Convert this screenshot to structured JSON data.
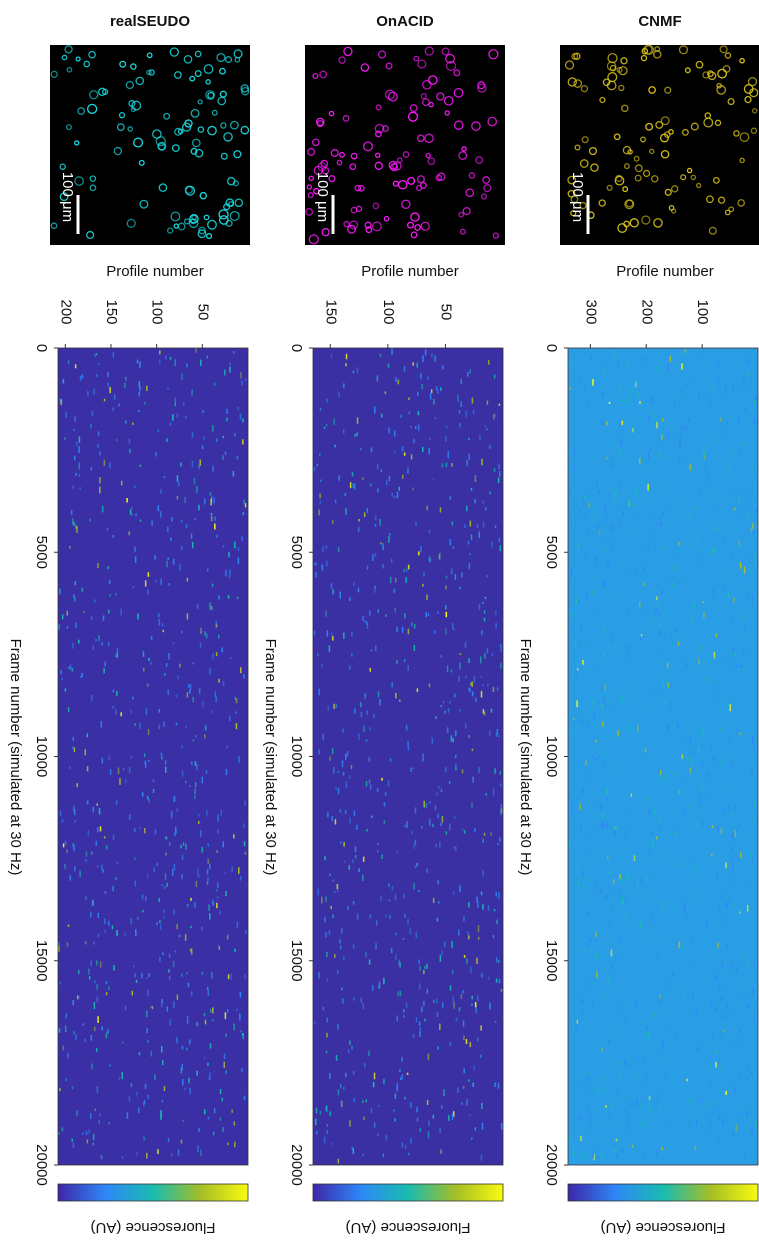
{
  "chart_data": [
    {
      "type": "heatmap",
      "title": "realSEUDO",
      "scale_bar": "100 μm",
      "cell_color": "#19e0e6",
      "xlabel": "Profile number",
      "ylabel": "Frame number (simulated at 30 Hz)",
      "xlim": [
        0,
        208
      ],
      "xticks": [
        200,
        150,
        100,
        50
      ],
      "ylim": [
        0,
        20000
      ],
      "yticks": [
        0,
        5000,
        10000,
        15000,
        20000
      ],
      "background_color": "#3b2fa6",
      "colormap": [
        "#3e26a8",
        "#2e87f7",
        "#19bcb0",
        "#a4be26",
        "#f9fb0e"
      ],
      "colorbar_label": "Fluorescence (AU)"
    },
    {
      "type": "heatmap",
      "title": "OnACID",
      "scale_bar": "100 μm",
      "cell_color": "#ff1aff",
      "xlabel": "Profile number",
      "ylabel": "Frame number (simulated at 30 Hz)",
      "xlim": [
        0,
        165
      ],
      "xticks": [
        150,
        100,
        50
      ],
      "ylim": [
        0,
        20000
      ],
      "yticks": [
        0,
        5000,
        10000,
        15000,
        20000
      ],
      "background_color": "#3a30a4",
      "colormap": [
        "#3e26a8",
        "#2e87f7",
        "#19bcb0",
        "#a4be26",
        "#f9fb0e"
      ],
      "colorbar_label": "Fluorescence (AU)"
    },
    {
      "type": "heatmap",
      "title": "CNMF",
      "scale_bar": "100 μm",
      "cell_color": "#d9c21a",
      "xlabel": "Profile number",
      "ylabel": "Frame number (simulated at 30 Hz)",
      "xlim": [
        0,
        340
      ],
      "xticks": [
        300,
        200,
        100
      ],
      "ylim": [
        0,
        20000
      ],
      "yticks": [
        0,
        5000,
        10000,
        15000,
        20000
      ],
      "background_color": "#2a9ee4",
      "colormap": [
        "#3e26a8",
        "#2e87f7",
        "#19bcb0",
        "#a4be26",
        "#f9fb0e"
      ],
      "colorbar_label": "Fluorescence (AU)"
    }
  ]
}
